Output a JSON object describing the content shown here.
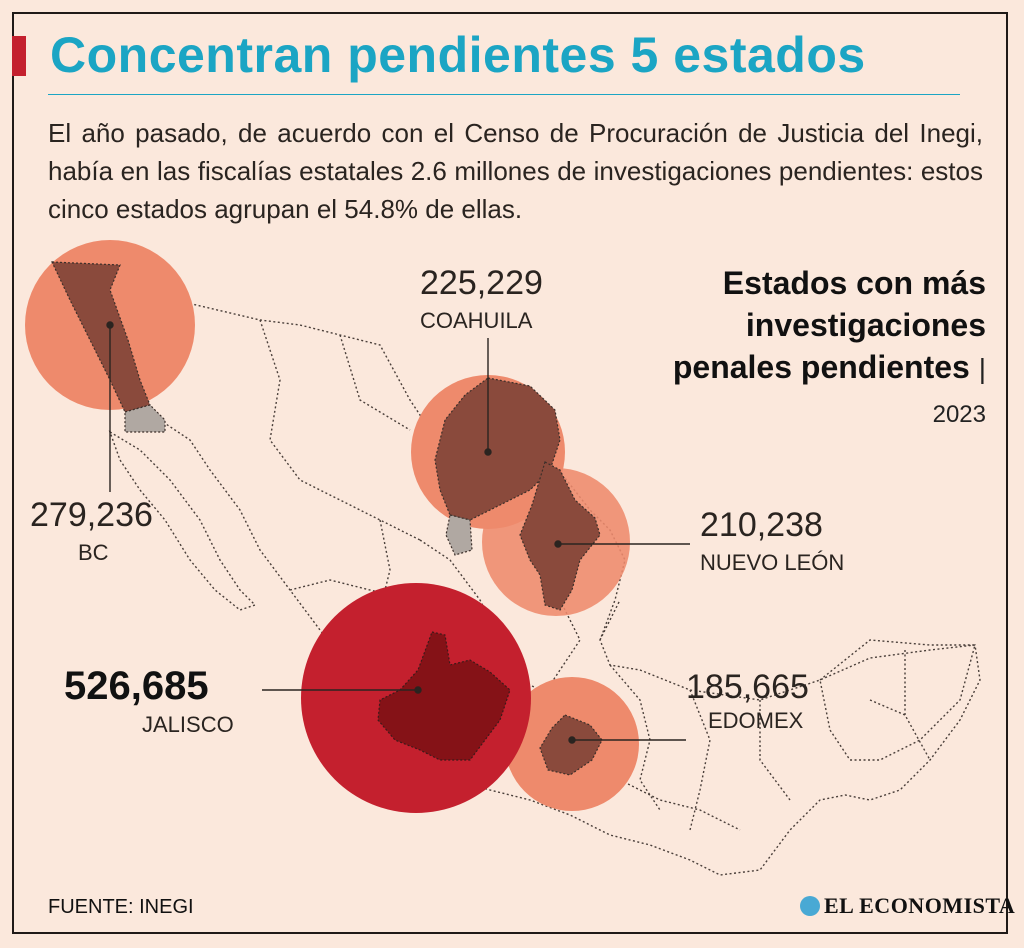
{
  "title": "Concentran pendientes 5 estados",
  "subtitle": "El año pasado, de acuerdo con el Censo de Procuración de Justicia del Inegi, había en las fiscalías estatales 2.6 millones de investigaciones pendientes: estos cinco estados agrupan el 54.8% de ellas.",
  "chart_title": "Estados con más investigaciones penales pendientes",
  "year": "2023",
  "states": [
    {
      "id": "bc",
      "value_label": "279,236",
      "name": "BC",
      "value": 279236
    },
    {
      "id": "coahuila",
      "value_label": "225,229",
      "name": "COAHUILA",
      "value": 225229
    },
    {
      "id": "nuevo-leon",
      "value_label": "210,238",
      "name": "NUEVO LEÓN",
      "value": 210238
    },
    {
      "id": "jalisco",
      "value_label": "526,685",
      "name": "JALISCO",
      "value": 526685
    },
    {
      "id": "edomex",
      "value_label": "185,665",
      "name": "EDOMEX",
      "value": 185665
    }
  ],
  "source": "FUENTE: INEGI",
  "logo": "EL ECONOMISTA",
  "colors": {
    "background": "#fbe8dc",
    "title": "#1ba5c4",
    "accent": "#c4202e",
    "bubble_light": "#ee8a6c",
    "bubble_dark": "#c4202e",
    "state_fill": "#8a4a3c",
    "jalisco_fill": "#851217"
  }
}
